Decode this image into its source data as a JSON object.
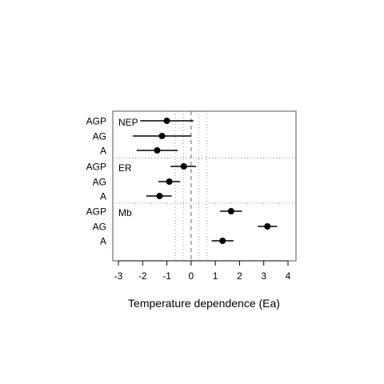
{
  "chart_data": {
    "type": "scatter",
    "xlabel": "Temperature dependence (Ea)",
    "xlim": [
      -3.3,
      4.3
    ],
    "x_ticks": [
      -3,
      -2,
      -1,
      0,
      1,
      2,
      3,
      4
    ],
    "x_tick_labels": [
      "-3",
      "-2",
      "-1",
      "0",
      "1",
      "2",
      "3",
      "4"
    ],
    "reference_lines": [
      {
        "x": 0,
        "style": "dashed"
      },
      {
        "x": -0.65,
        "style": "dotted"
      },
      {
        "x": -0.32,
        "style": "dotted"
      },
      {
        "x": 0.32,
        "style": "dotted"
      },
      {
        "x": 0.65,
        "style": "dotted"
      }
    ],
    "panels": [
      {
        "name": "NEP",
        "rows": [
          {
            "label": "AGP",
            "estimate": -1.0,
            "lower": -2.1,
            "upper": 0.1
          },
          {
            "label": "AG",
            "estimate": -1.2,
            "lower": -2.4,
            "upper": 0.0
          },
          {
            "label": "A",
            "estimate": -1.4,
            "lower": -2.25,
            "upper": -0.55
          }
        ]
      },
      {
        "name": "ER",
        "rows": [
          {
            "label": "AGP",
            "estimate": -0.3,
            "lower": -0.85,
            "upper": 0.2
          },
          {
            "label": "AG",
            "estimate": -0.9,
            "lower": -1.35,
            "upper": -0.45
          },
          {
            "label": "A",
            "estimate": -1.3,
            "lower": -1.85,
            "upper": -0.8
          }
        ]
      },
      {
        "name": "Mb",
        "rows": [
          {
            "label": "AGP",
            "estimate": 1.65,
            "lower": 1.2,
            "upper": 2.1
          },
          {
            "label": "AG",
            "estimate": 3.15,
            "lower": 2.75,
            "upper": 3.55
          },
          {
            "label": "A",
            "estimate": 1.3,
            "lower": 0.85,
            "upper": 1.75
          }
        ]
      }
    ]
  }
}
